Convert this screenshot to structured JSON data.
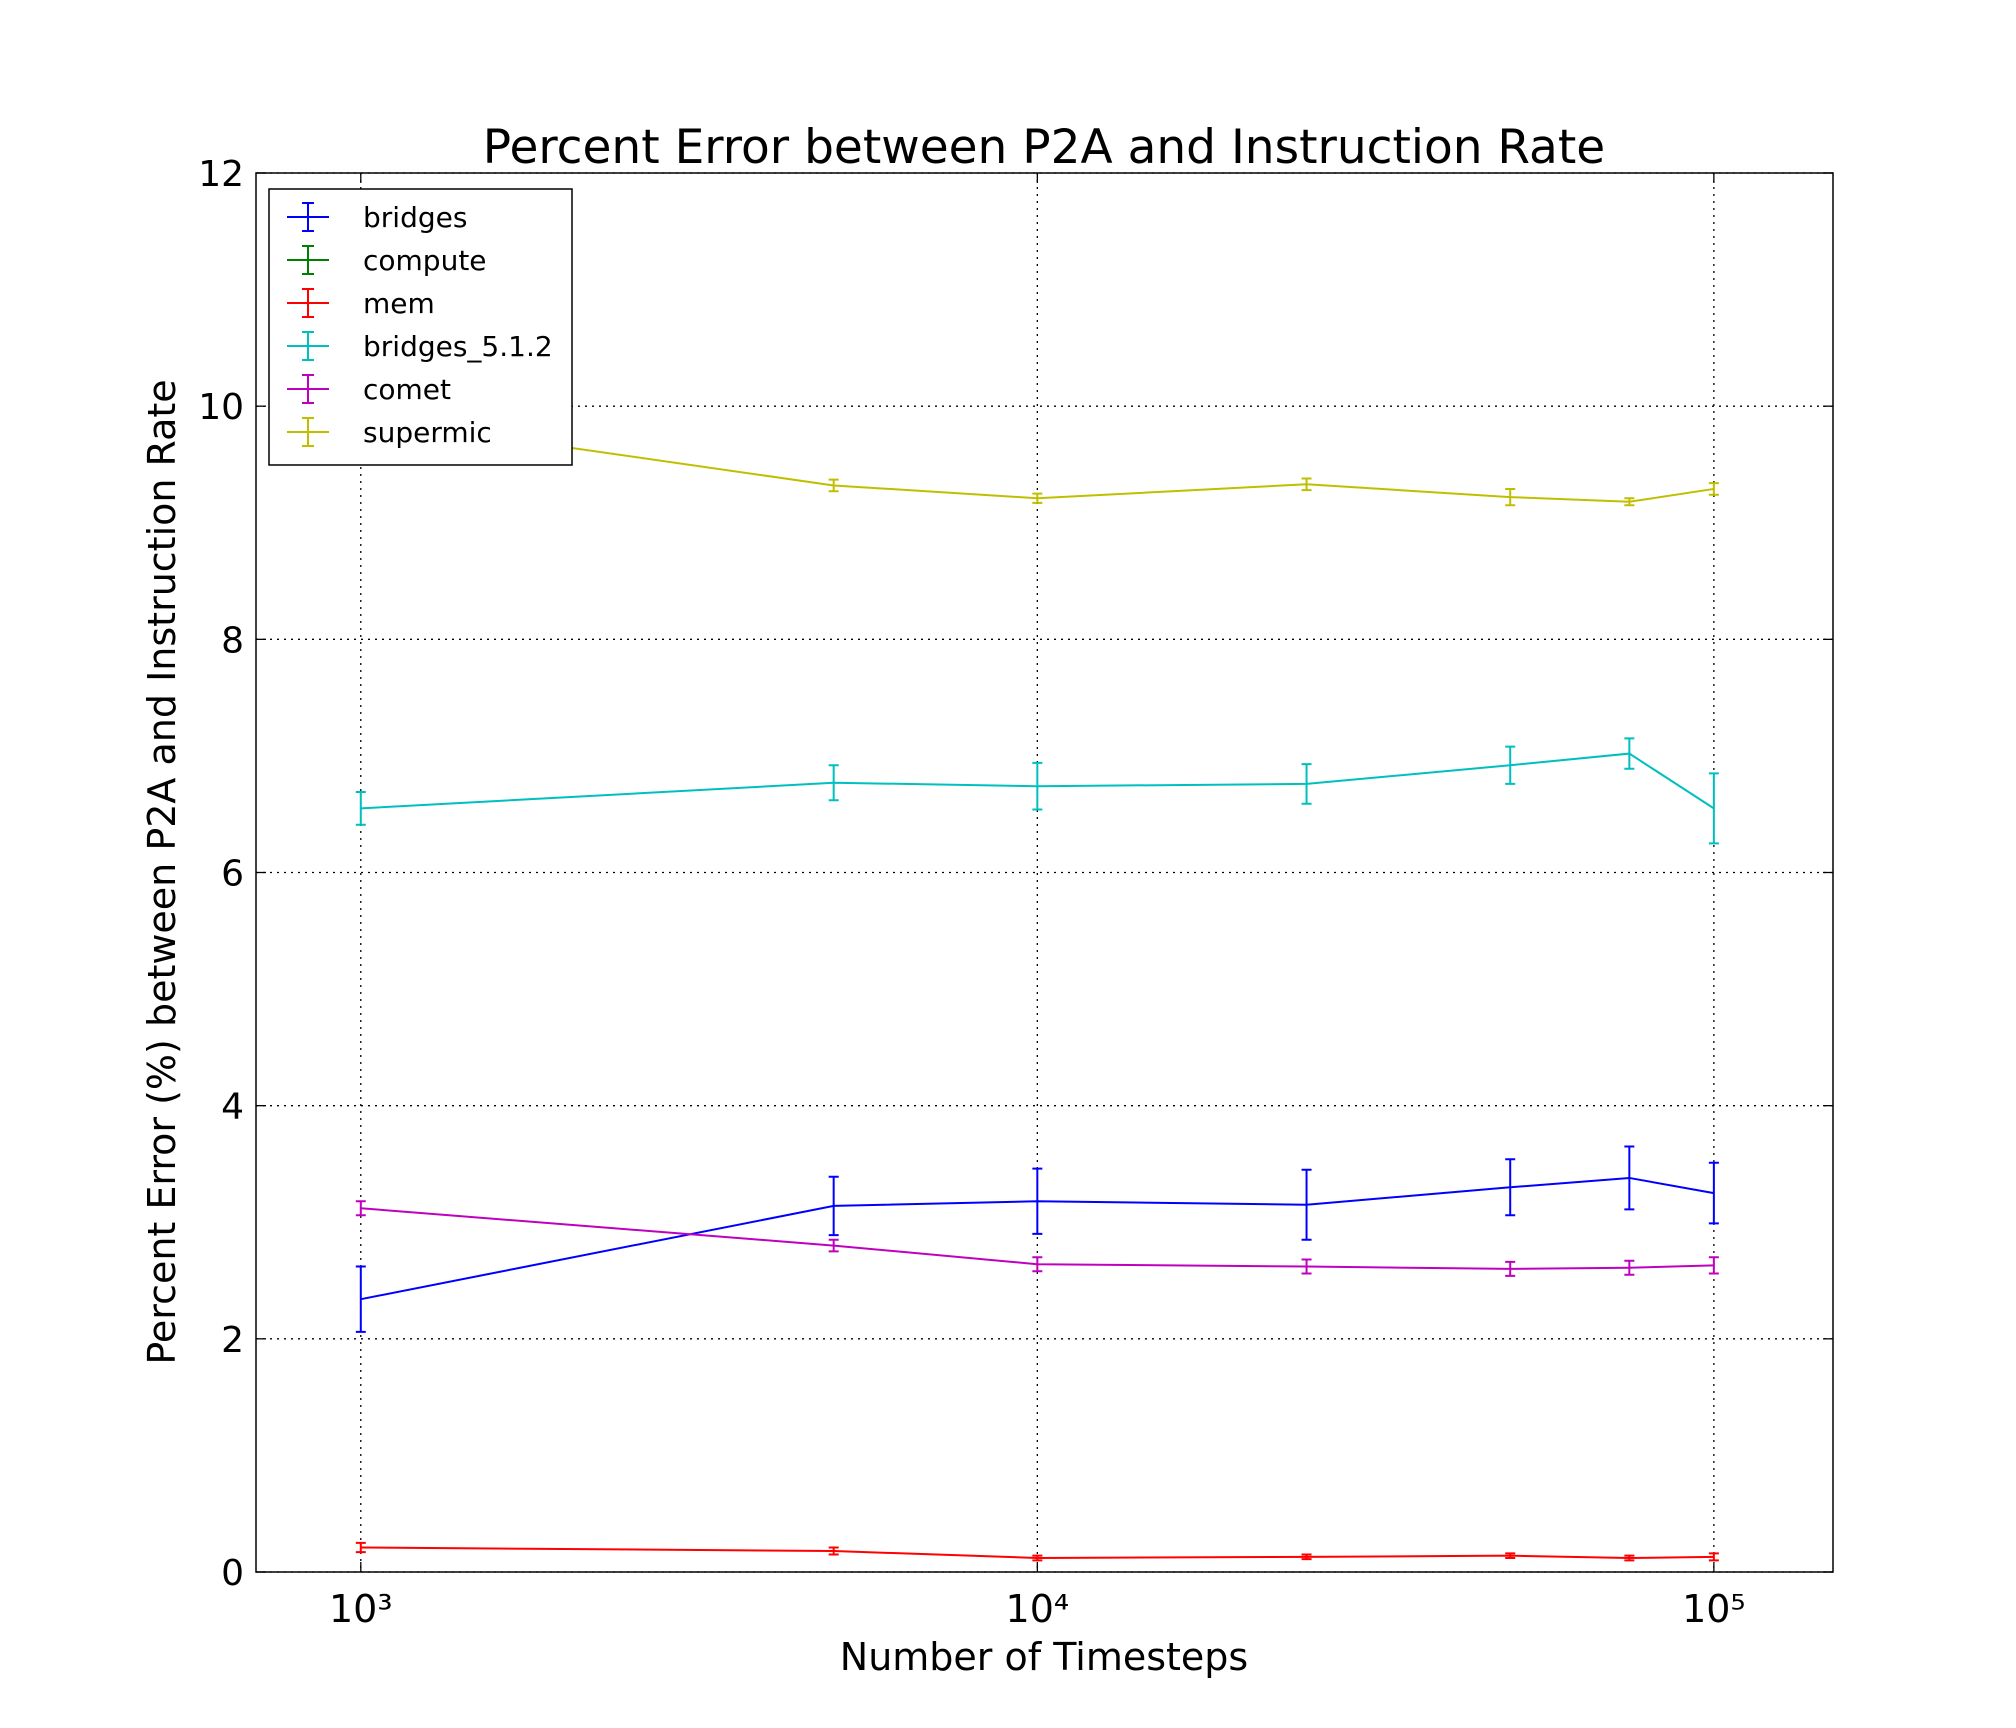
{
  "chart_data": {
    "type": "line",
    "title": "Percent Error between P2A and Instruction Rate",
    "xlabel": "Number of Timesteps",
    "ylabel": "Percent Error (%) between P2A and Instruction Rate",
    "x": [
      1000,
      5000,
      10000,
      25000,
      50000,
      75000,
      100000
    ],
    "xscale": "log",
    "xlim": [
      700,
      150000
    ],
    "xticks": [
      {
        "value": 1000,
        "label": "10³"
      },
      {
        "value": 10000,
        "label": "10⁴"
      },
      {
        "value": 100000,
        "label": "10⁵"
      }
    ],
    "ylim": [
      0,
      12
    ],
    "yticks": [
      0,
      2,
      4,
      6,
      8,
      10,
      12
    ],
    "grid": true,
    "legend": "upper left",
    "series": [
      {
        "name": "bridges",
        "color": "#0000ff",
        "values": [
          2.34,
          3.14,
          3.18,
          3.15,
          3.3,
          3.38,
          3.25
        ],
        "errors": [
          0.28,
          0.25,
          0.28,
          0.3,
          0.24,
          0.27,
          0.26
        ]
      },
      {
        "name": "compute",
        "color": "#008000",
        "values": [
          null,
          null,
          null,
          null,
          null,
          null,
          null
        ],
        "errors": [
          null,
          null,
          null,
          null,
          null,
          null,
          null
        ]
      },
      {
        "name": "mem",
        "color": "#ff0000",
        "values": [
          0.21,
          0.18,
          0.12,
          0.13,
          0.14,
          0.12,
          0.13
        ],
        "errors": [
          0.04,
          0.03,
          0.02,
          0.02,
          0.02,
          0.02,
          0.03
        ]
      },
      {
        "name": "bridges_5.1.2",
        "color": "#00bfbf",
        "values": [
          6.55,
          6.77,
          6.74,
          6.76,
          6.92,
          7.02,
          6.55
        ],
        "errors": [
          0.14,
          0.15,
          0.2,
          0.17,
          0.16,
          0.13,
          0.3
        ]
      },
      {
        "name": "comet",
        "color": "#bf00bf",
        "values": [
          3.12,
          2.8,
          2.64,
          2.62,
          2.6,
          2.61,
          2.63
        ],
        "errors": [
          0.06,
          0.05,
          0.06,
          0.06,
          0.06,
          0.06,
          0.07
        ]
      },
      {
        "name": "supermic",
        "color": "#bfbf00",
        "values": [
          9.9,
          9.32,
          9.21,
          9.33,
          9.22,
          9.18,
          9.29
        ],
        "errors": [
          0.05,
          0.05,
          0.04,
          0.05,
          0.07,
          0.03,
          0.05
        ]
      }
    ]
  }
}
